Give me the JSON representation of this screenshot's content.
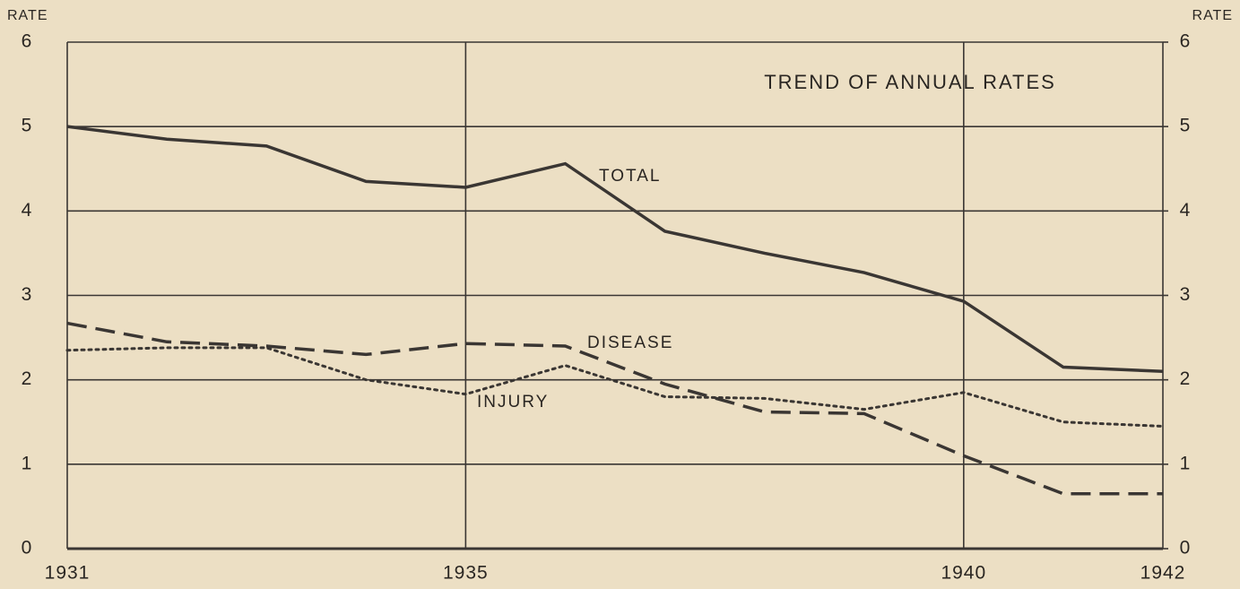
{
  "chart_data": {
    "type": "line",
    "title": "TREND OF ANNUAL RATES",
    "y_label": "RATE",
    "y2_label": "RATE",
    "x": [
      1931,
      1932,
      1933,
      1934,
      1935,
      1936,
      1937,
      1938,
      1939,
      1940,
      1941,
      1942
    ],
    "xlim": [
      1931,
      1942
    ],
    "xticks": [
      1931,
      1935,
      1940,
      1942
    ],
    "ylim": [
      0,
      6
    ],
    "yticks": [
      0,
      1,
      2,
      3,
      4,
      5,
      6
    ],
    "y2lim": [
      0,
      6
    ],
    "y2ticks": [
      0,
      1,
      2,
      3,
      4,
      5,
      6
    ],
    "grid": true,
    "series": [
      {
        "name": "TOTAL",
        "color": "#3a3633",
        "dash": "solid",
        "values": [
          5.0,
          4.85,
          4.77,
          4.35,
          4.28,
          4.56,
          3.76,
          3.5,
          3.27,
          2.93,
          2.15,
          2.1
        ]
      },
      {
        "name": "DISEASE",
        "color": "#3a3633",
        "dash": "dashed",
        "values": [
          2.67,
          2.45,
          2.4,
          2.3,
          2.43,
          2.4,
          1.95,
          1.62,
          1.6,
          1.1,
          0.65,
          0.65
        ]
      },
      {
        "name": "INJURY",
        "color": "#3a3633",
        "dash": "dotted",
        "values": [
          2.35,
          2.38,
          2.38,
          2.0,
          1.83,
          2.17,
          1.8,
          1.78,
          1.65,
          1.85,
          1.5,
          1.45
        ]
      }
    ]
  }
}
